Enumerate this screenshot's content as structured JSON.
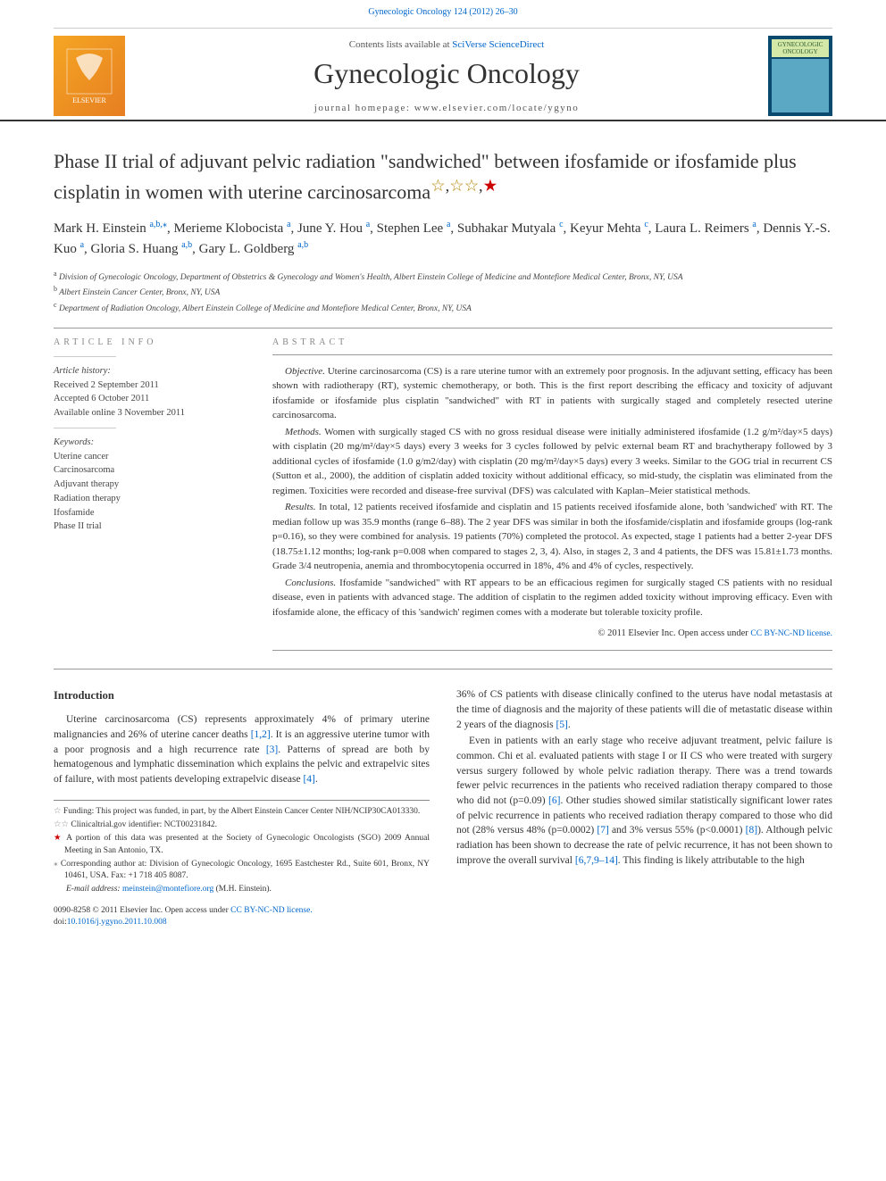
{
  "top_link": "Gynecologic Oncology 124 (2012) 26–30",
  "masthead": {
    "contents_prefix": "Contents lists available at ",
    "contents_link": "SciVerse ScienceDirect",
    "journal": "Gynecologic Oncology",
    "homepage_prefix": "journal homepage: ",
    "homepage": "www.elsevier.com/locate/ygyno",
    "elsevier": "ELSEVIER",
    "cover_label": "GYNECOLOGIC ONCOLOGY"
  },
  "title": {
    "main": "Phase II trial of adjuvant pelvic radiation \"sandwiched\" between ifosfamide or ifosfamide plus cisplatin in women with uterine carcinosarcoma",
    "marks": "☆,☆☆,★"
  },
  "authors_html": "Mark H. Einstein <sup>a,b,</sup><sup class='star-sup'>⁎</sup>, Merieme Klobocista <sup>a</sup>, June Y. Hou <sup>a</sup>, Stephen Lee <sup>a</sup>, Subhakar Mutyala <sup>c</sup>, Keyur Mehta <sup>c</sup>, Laura L. Reimers <sup>a</sup>, Dennis Y.-S. Kuo <sup>a</sup>, Gloria S. Huang <sup>a,b</sup>, Gary L. Goldberg <sup>a,b</sup>",
  "affiliations": {
    "a": "Division of Gynecologic Oncology, Department of Obstetrics & Gynecology and Women's Health, Albert Einstein College of Medicine and Montefiore Medical Center, Bronx, NY, USA",
    "b": "Albert Einstein Cancer Center, Bronx, NY, USA",
    "c": "Department of Radiation Oncology, Albert Einstein College of Medicine and Montefiore Medical Center, Bronx, NY, USA"
  },
  "article_info": {
    "heading": "ARTICLE INFO",
    "history_label": "Article history:",
    "received": "Received 2 September 2011",
    "accepted": "Accepted 6 October 2011",
    "online": "Available online 3 November 2011",
    "keywords_label": "Keywords:",
    "keywords": [
      "Uterine cancer",
      "Carcinosarcoma",
      "Adjuvant therapy",
      "Radiation therapy",
      "Ifosfamide",
      "Phase II trial"
    ]
  },
  "abstract": {
    "heading": "ABSTRACT",
    "objective": "Uterine carcinosarcoma (CS) is a rare uterine tumor with an extremely poor prognosis. In the adjuvant setting, efficacy has been shown with radiotherapy (RT), systemic chemotherapy, or both. This is the first report describing the efficacy and toxicity of adjuvant ifosfamide or ifosfamide plus cisplatin \"sandwiched\" with RT in patients with surgically staged and completely resected uterine carcinosarcoma.",
    "methods": "Women with surgically staged CS with no gross residual disease were initially administered ifosfamide (1.2 g/m²/day×5 days) with cisplatin (20 mg/m²/day×5 days) every 3 weeks for 3 cycles followed by pelvic external beam RT and brachytherapy followed by 3 additional cycles of ifosfamide (1.0 g/m2/day) with cisplatin (20 mg/m²/day×5 days) every 3 weeks. Similar to the GOG trial in recurrent CS (Sutton et al., 2000), the addition of cisplatin added toxicity without additional efficacy, so mid-study, the cisplatin was eliminated from the regimen. Toxicities were recorded and disease-free survival (DFS) was calculated with Kaplan–Meier statistical methods.",
    "results": "In total, 12 patients received ifosfamide and cisplatin and 15 patients received ifosfamide alone, both 'sandwiched' with RT. The median follow up was 35.9 months (range 6–88). The 2 year DFS was similar in both the ifosfamide/cisplatin and ifosfamide groups (log-rank p=0.16), so they were combined for analysis. 19 patients (70%) completed the protocol. As expected, stage 1 patients had a better 2-year DFS (18.75±1.12 months; log-rank p=0.008 when compared to stages 2, 3, 4). Also, in stages 2, 3 and 4 patients, the DFS was 15.81±1.73 months. Grade 3/4 neutropenia, anemia and thrombocytopenia occurred in 18%, 4% and 4% of cycles, respectively.",
    "conclusions": "Ifosfamide \"sandwiched\" with RT appears to be an efficacious regimen for surgically staged CS patients with no residual disease, even in patients with advanced stage. The addition of cisplatin to the regimen added toxicity without improving efficacy. Even with ifosfamide alone, the efficacy of this 'sandwich' regimen comes with a moderate but tolerable toxicity profile.",
    "copyright": "© 2011 Elsevier Inc.",
    "license_prefix": "Open access under ",
    "license": "CC BY-NC-ND license."
  },
  "body": {
    "intro_heading": "Introduction",
    "p1_a": "Uterine carcinosarcoma (CS) represents approximately 4% of primary uterine malignancies and 26% of uterine cancer deaths ",
    "p1_ref1": "[1,2]",
    "p1_b": ". It is an aggressive uterine tumor with a poor prognosis and a high recurrence rate ",
    "p1_ref2": "[3]",
    "p1_c": ". Patterns of spread are both by hematogenous and lymphatic dissemination which explains the pelvic and extrapelvic sites of failure, with most patients developing extrapelvic disease ",
    "p1_ref3": "[4]",
    "p1_d": ".",
    "p2_a": "36% of CS patients with disease clinically confined to the uterus have nodal metastasis at the time of diagnosis and the majority of these patients will die of metastatic disease within 2 years of the diagnosis ",
    "p2_ref1": "[5]",
    "p2_b": ".",
    "p3_a": "Even in patients with an early stage who receive adjuvant treatment, pelvic failure is common. Chi et al. evaluated patients with stage I or II CS who were treated with surgery versus surgery followed by whole pelvic radiation therapy. There was a trend towards fewer pelvic recurrences in the patients who received radiation therapy compared to those who did not (p=0.09) ",
    "p3_ref1": "[6]",
    "p3_b": ". Other studies showed similar statistically significant lower rates of pelvic recurrence in patients who received radiation therapy compared to those who did not (28% versus 48% (p=0.0002) ",
    "p3_ref2": "[7]",
    "p3_c": " and 3% versus 55% (p<0.0001) ",
    "p3_ref3": "[8]",
    "p3_d": "). Although pelvic radiation has been shown to decrease the rate of pelvic recurrence, it has not been shown to improve the overall survival ",
    "p3_ref4": "[6,7,9–14]",
    "p3_e": ". This finding is likely attributable to the high"
  },
  "footnotes": {
    "f1": "Funding: This project was funded, in part, by the Albert Einstein Cancer Center NIH/NCIP30CA013330.",
    "f2": "Clinicaltrial.gov identifier: NCT00231842.",
    "f3": "A portion of this data was presented at the Society of Gynecologic Oncologists (SGO) 2009 Annual Meeting in San Antonio, TX.",
    "f4": "Corresponding author at: Division of Gynecologic Oncology, 1695 Eastchester Rd., Suite 601, Bronx, NY 10461, USA. Fax: +1 718 405 8087.",
    "email_label": "E-mail address: ",
    "email": "meinstein@montefiore.org",
    "email_suffix": " (M.H. Einstein)."
  },
  "doi": {
    "line1_a": "0090-8258 © 2011 Elsevier Inc. ",
    "line1_b": "Open access under ",
    "line1_link": "CC BY-NC-ND license.",
    "line2_label": "doi:",
    "line2": "10.1016/j.ygyno.2011.10.008"
  },
  "colors": {
    "link": "#0066cc",
    "text": "#333333",
    "rule": "#999999",
    "elsevier_bg": "#e88b2d",
    "cover_bg": "#0a4a6e"
  }
}
